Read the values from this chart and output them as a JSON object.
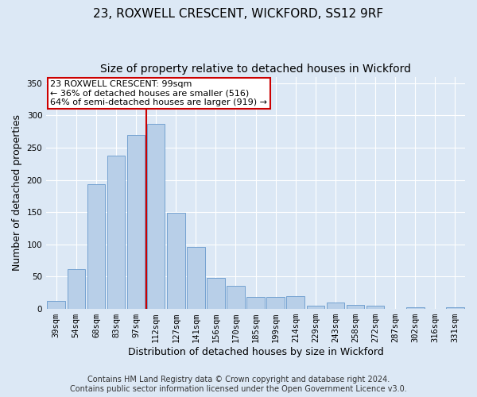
{
  "title": "23, ROXWELL CRESCENT, WICKFORD, SS12 9RF",
  "subtitle": "Size of property relative to detached houses in Wickford",
  "xlabel": "Distribution of detached houses by size in Wickford",
  "ylabel": "Number of detached properties",
  "categories": [
    "39sqm",
    "54sqm",
    "68sqm",
    "83sqm",
    "97sqm",
    "112sqm",
    "127sqm",
    "141sqm",
    "156sqm",
    "170sqm",
    "185sqm",
    "199sqm",
    "214sqm",
    "229sqm",
    "243sqm",
    "258sqm",
    "272sqm",
    "287sqm",
    "302sqm",
    "316sqm",
    "331sqm"
  ],
  "values": [
    13,
    62,
    193,
    238,
    270,
    287,
    149,
    96,
    48,
    36,
    18,
    18,
    20,
    5,
    10,
    6,
    5,
    0,
    3,
    0,
    3
  ],
  "bar_color": "#b8cfe8",
  "bar_edge_color": "#6699cc",
  "property_bin_index": 4,
  "vline_color": "#cc0000",
  "annotation_text": "23 ROXWELL CRESCENT: 99sqm\n← 36% of detached houses are smaller (516)\n64% of semi-detached houses are larger (919) →",
  "annotation_box_color": "#cc0000",
  "ylim": [
    0,
    360
  ],
  "yticks": [
    0,
    50,
    100,
    150,
    200,
    250,
    300,
    350
  ],
  "footer_line1": "Contains HM Land Registry data © Crown copyright and database right 2024.",
  "footer_line2": "Contains public sector information licensed under the Open Government Licence v3.0.",
  "background_color": "#dce8f5",
  "plot_background_color": "#dce8f5",
  "grid_color": "#ffffff",
  "title_fontsize": 11,
  "subtitle_fontsize": 10,
  "axis_label_fontsize": 9,
  "tick_fontsize": 7.5,
  "annotation_fontsize": 8,
  "footer_fontsize": 7
}
